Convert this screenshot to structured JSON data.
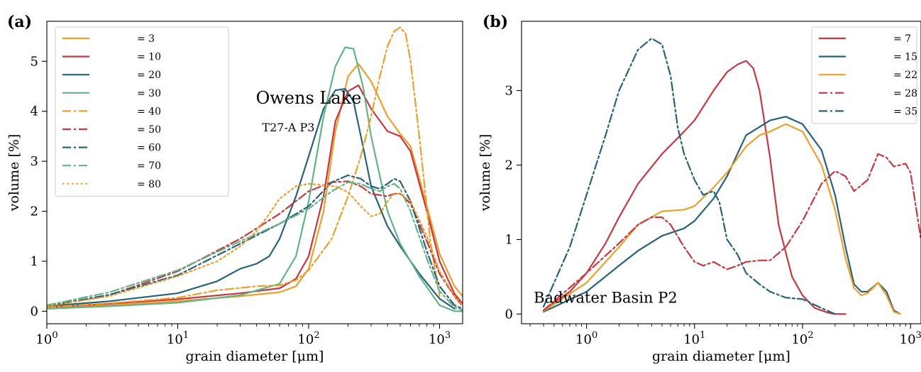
{
  "colors": {
    "orange": "#ee9f2a",
    "red": "#c93741",
    "teal": "#27627a",
    "green": "#62b386"
  },
  "chart_data": [
    {
      "panel": "(a)",
      "type": "line",
      "xlabel": "grain diameter [μm]",
      "ylabel": "volume [%]",
      "xscale": "log",
      "xlim": [
        1,
        1500
      ],
      "ylim": [
        -0.25,
        5.8
      ],
      "xticks": [
        1,
        10,
        100,
        1000
      ],
      "xtick_labels": [
        "10^0",
        "10^1",
        "10^2",
        "10^3"
      ],
      "yticks": [
        0,
        1,
        2,
        3,
        4,
        5
      ],
      "ytick_labels": [
        "0",
        "1",
        "2",
        "3",
        "4",
        "5"
      ],
      "grid": false,
      "legend_position": "top-left",
      "annotations": [
        {
          "text": "Owens Lake",
          "x": 100,
          "y": 4.15,
          "size": "big"
        },
        {
          "text": "T27-A P3",
          "x": 70,
          "y": 3.6,
          "size": "small"
        }
      ],
      "series": [
        {
          "name": "= 3",
          "color": "orange",
          "style": "solid",
          "x": [
            1,
            3,
            10,
            30,
            60,
            80,
            100,
            130,
            160,
            200,
            240,
            300,
            400,
            500,
            600,
            800,
            1000,
            1300,
            1500
          ],
          "y": [
            0.06,
            0.12,
            0.2,
            0.3,
            0.38,
            0.5,
            0.85,
            2.0,
            3.6,
            4.7,
            4.95,
            4.6,
            3.9,
            3.55,
            3.3,
            2.1,
            1.15,
            0.5,
            0.3
          ]
        },
        {
          "name": "= 10",
          "color": "red",
          "style": "solid",
          "x": [
            1,
            3,
            10,
            30,
            60,
            80,
            100,
            130,
            160,
            200,
            240,
            300,
            400,
            500,
            600,
            800,
            1000,
            1300,
            1500
          ],
          "y": [
            0.08,
            0.15,
            0.24,
            0.36,
            0.46,
            0.65,
            1.1,
            2.3,
            3.8,
            4.4,
            4.52,
            4.05,
            3.6,
            3.5,
            3.2,
            2.0,
            1.0,
            0.35,
            0.15
          ]
        },
        {
          "name": "= 20",
          "color": "teal",
          "style": "solid",
          "x": [
            1,
            3,
            10,
            20,
            30,
            40,
            50,
            60,
            80,
            100,
            130,
            160,
            190,
            220,
            260,
            300,
            400,
            500,
            700,
            1000,
            1300
          ],
          "y": [
            0.1,
            0.2,
            0.36,
            0.6,
            0.85,
            0.95,
            1.1,
            1.45,
            2.3,
            3.1,
            4.05,
            4.42,
            4.45,
            4.2,
            3.3,
            2.5,
            1.7,
            1.3,
            0.75,
            0.25,
            0.05
          ]
        },
        {
          "name": "= 30",
          "color": "green",
          "style": "solid",
          "x": [
            1,
            3,
            10,
            30,
            60,
            80,
            100,
            130,
            160,
            190,
            220,
            260,
            300,
            400,
            500,
            700,
            1000,
            1300,
            1500
          ],
          "y": [
            0.05,
            0.1,
            0.17,
            0.32,
            0.55,
            1.1,
            2.2,
            3.9,
            4.9,
            5.28,
            5.25,
            4.5,
            3.5,
            2.0,
            1.35,
            0.7,
            0.12,
            0.0,
            0.0
          ]
        },
        {
          "name": "= 40",
          "color": "orange",
          "style": "dashdot",
          "x": [
            1,
            3,
            10,
            20,
            40,
            60,
            80,
            100,
            150,
            200,
            250,
            300,
            350,
            400,
            450,
            500,
            550,
            600,
            700,
            850,
            1000
          ],
          "y": [
            0.08,
            0.16,
            0.27,
            0.42,
            0.5,
            0.52,
            0.62,
            0.82,
            1.45,
            2.3,
            3.1,
            3.9,
            4.7,
            5.3,
            5.6,
            5.68,
            5.55,
            5.0,
            3.5,
            1.4,
            0.3
          ]
        },
        {
          "name": "= 50",
          "color": "red",
          "style": "dashdot",
          "x": [
            1,
            3,
            10,
            30,
            60,
            100,
            150,
            200,
            250,
            300,
            400,
            450,
            500,
            600,
            800,
            1000,
            1300,
            1500
          ],
          "y": [
            0.1,
            0.32,
            0.8,
            1.45,
            1.95,
            2.4,
            2.58,
            2.6,
            2.5,
            2.35,
            2.3,
            2.35,
            2.35,
            2.15,
            1.4,
            0.75,
            0.3,
            0.1
          ]
        },
        {
          "name": "= 60",
          "color": "teal",
          "style": "dashdot",
          "x": [
            1,
            3,
            10,
            30,
            60,
            100,
            150,
            200,
            250,
            300,
            350,
            400,
            450,
            500,
            600,
            800,
            1000,
            1300,
            1500
          ],
          "y": [
            0.1,
            0.33,
            0.72,
            1.35,
            1.75,
            2.1,
            2.58,
            2.72,
            2.65,
            2.5,
            2.45,
            2.55,
            2.65,
            2.6,
            2.2,
            1.2,
            0.5,
            0.12,
            0.05
          ]
        },
        {
          "name": "= 70",
          "color": "green",
          "style": "dashdot",
          "x": [
            1,
            3,
            10,
            30,
            60,
            100,
            150,
            200,
            250,
            300,
            350,
            400,
            450,
            500,
            600,
            800,
            1000,
            1300,
            1500
          ],
          "y": [
            0.12,
            0.38,
            0.82,
            1.4,
            1.75,
            2.05,
            2.4,
            2.58,
            2.55,
            2.45,
            2.4,
            2.5,
            2.55,
            2.45,
            2.0,
            1.05,
            0.4,
            0.08,
            0.02
          ]
        },
        {
          "name": "= 80",
          "color": "orange",
          "style": "dotted",
          "x": [
            1,
            3,
            10,
            20,
            30,
            40,
            50,
            60,
            80,
            100,
            130,
            160,
            200,
            250,
            300,
            350,
            400,
            450,
            500,
            600,
            800,
            1000,
            1300,
            1500
          ],
          "y": [
            0.1,
            0.3,
            0.7,
            1.0,
            1.3,
            1.6,
            1.95,
            2.25,
            2.5,
            2.55,
            2.52,
            2.5,
            2.38,
            2.1,
            1.9,
            1.95,
            2.2,
            2.35,
            2.35,
            2.2,
            1.5,
            0.8,
            0.3,
            0.12
          ]
        }
      ]
    },
    {
      "panel": "(b)",
      "type": "line",
      "xlabel": "grain diameter [μm]",
      "ylabel": "volume [%]",
      "xscale": "log",
      "xlim": [
        0.25,
        1250
      ],
      "ylim": [
        -0.13,
        3.93
      ],
      "xticks": [
        1,
        10,
        100,
        1000
      ],
      "xtick_labels": [
        "10^0",
        "10^1",
        "10^2",
        "10^3"
      ],
      "yticks": [
        0,
        1,
        2,
        3
      ],
      "ytick_labels": [
        "0",
        "1",
        "2",
        "3"
      ],
      "grid": false,
      "legend_position": "top-right",
      "annotations": [
        {
          "text": "Badwater Basin P2",
          "x": 1.5,
          "y": 0.15,
          "size": "mid"
        }
      ],
      "series": [
        {
          "name": "= 7",
          "color": "red",
          "style": "solid",
          "x": [
            0.4,
            0.7,
            1,
            1.5,
            2,
            3,
            5,
            8,
            10,
            15,
            20,
            25,
            30,
            35,
            40,
            50,
            60,
            80,
            100,
            130,
            170,
            200,
            250
          ],
          "y": [
            0.05,
            0.3,
            0.55,
            0.95,
            1.3,
            1.75,
            2.15,
            2.45,
            2.6,
            3.0,
            3.25,
            3.35,
            3.4,
            3.3,
            3.0,
            2.1,
            1.2,
            0.5,
            0.25,
            0.08,
            0.02,
            0.0,
            0.0
          ]
        },
        {
          "name": "= 15",
          "color": "teal",
          "style": "solid",
          "x": [
            0.4,
            1,
            2,
            3,
            5,
            8,
            10,
            15,
            20,
            30,
            50,
            70,
            100,
            150,
            200,
            250,
            300,
            350,
            400,
            500,
            600,
            700,
            800
          ],
          "y": [
            0.03,
            0.3,
            0.65,
            0.85,
            1.05,
            1.15,
            1.25,
            1.55,
            1.85,
            2.4,
            2.6,
            2.65,
            2.55,
            2.2,
            1.6,
            0.9,
            0.4,
            0.3,
            0.3,
            0.42,
            0.3,
            0.05,
            0.0
          ]
        },
        {
          "name": "= 22",
          "color": "orange",
          "style": "solid",
          "x": [
            0.4,
            1,
            2,
            3,
            5,
            8,
            10,
            15,
            20,
            30,
            40,
            50,
            70,
            100,
            150,
            200,
            250,
            300,
            350,
            400,
            500,
            600,
            700,
            800
          ],
          "y": [
            0.04,
            0.42,
            0.9,
            1.2,
            1.38,
            1.4,
            1.45,
            1.7,
            1.9,
            2.25,
            2.4,
            2.45,
            2.55,
            2.45,
            2.0,
            1.4,
            0.75,
            0.35,
            0.25,
            0.28,
            0.42,
            0.25,
            0.03,
            0.0
          ]
        },
        {
          "name": "= 28",
          "color": "red",
          "style": "dashdot",
          "x": [
            0.4,
            1,
            2,
            3,
            4,
            5,
            6,
            8,
            10,
            12,
            15,
            20,
            25,
            30,
            40,
            50,
            70,
            100,
            150,
            200,
            250,
            300,
            400,
            500,
            600,
            700,
            900,
            1000,
            1250
          ],
          "y": [
            0.05,
            0.55,
            0.95,
            1.2,
            1.3,
            1.3,
            1.2,
            0.9,
            0.7,
            0.65,
            0.7,
            0.6,
            0.65,
            0.7,
            0.72,
            0.72,
            0.9,
            1.25,
            1.75,
            1.92,
            1.85,
            1.65,
            1.8,
            2.15,
            2.1,
            1.98,
            2.02,
            1.9,
            1.0
          ]
        },
        {
          "name": "= 35",
          "color": "teal",
          "style": "dashdot",
          "x": [
            0.4,
            0.7,
            1,
            1.5,
            2,
            3,
            4,
            5,
            6,
            7,
            8,
            10,
            12,
            15,
            17,
            20,
            25,
            30,
            40,
            50,
            70,
            100,
            150,
            200
          ],
          "y": [
            0.1,
            0.9,
            1.6,
            2.4,
            3.0,
            3.55,
            3.7,
            3.62,
            3.2,
            2.5,
            2.15,
            1.8,
            1.6,
            1.65,
            1.5,
            1.0,
            0.8,
            0.55,
            0.4,
            0.3,
            0.22,
            0.2,
            0.08,
            0.0
          ]
        }
      ]
    }
  ]
}
